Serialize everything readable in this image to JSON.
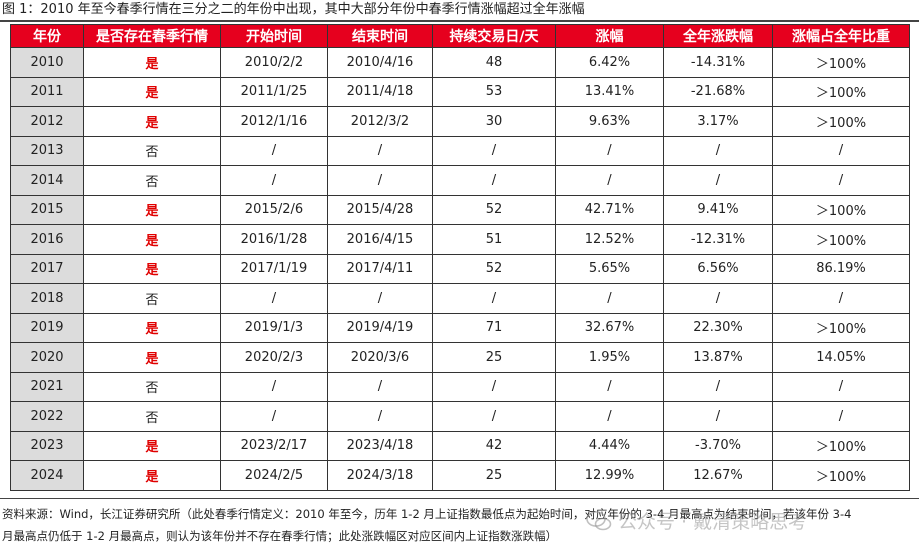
{
  "title": "图 1：2010 年至今春季行情在三分之二的年份中出现，其中大部分年份中春季行情涨幅超过全年涨幅",
  "columns": [
    "年份",
    "是否存在春季行情",
    "开始时间",
    "结束时间",
    "持续交易日/天",
    "涨幅",
    "全年涨跌幅",
    "涨幅占全年比重"
  ],
  "rows": [
    {
      "year": "2010",
      "exists": "是",
      "start": "2010/2/2",
      "end": "2010/4/16",
      "days": "48",
      "gain": "6.42%",
      "annual": "-14.31%",
      "ratio": "＞100%"
    },
    {
      "year": "2011",
      "exists": "是",
      "start": "2011/1/25",
      "end": "2011/4/18",
      "days": "53",
      "gain": "13.41%",
      "annual": "-21.68%",
      "ratio": "＞100%"
    },
    {
      "year": "2012",
      "exists": "是",
      "start": "2012/1/16",
      "end": "2012/3/2",
      "days": "30",
      "gain": "9.63%",
      "annual": "3.17%",
      "ratio": "＞100%"
    },
    {
      "year": "2013",
      "exists": "否",
      "start": "/",
      "end": "/",
      "days": "/",
      "gain": "/",
      "annual": "/",
      "ratio": "/"
    },
    {
      "year": "2014",
      "exists": "否",
      "start": "/",
      "end": "/",
      "days": "/",
      "gain": "/",
      "annual": "/",
      "ratio": "/"
    },
    {
      "year": "2015",
      "exists": "是",
      "start": "2015/2/6",
      "end": "2015/4/28",
      "days": "52",
      "gain": "42.71%",
      "annual": "9.41%",
      "ratio": "＞100%"
    },
    {
      "year": "2016",
      "exists": "是",
      "start": "2016/1/28",
      "end": "2016/4/15",
      "days": "51",
      "gain": "12.52%",
      "annual": "-12.31%",
      "ratio": "＞100%"
    },
    {
      "year": "2017",
      "exists": "是",
      "start": "2017/1/19",
      "end": "2017/4/11",
      "days": "52",
      "gain": "5.65%",
      "annual": "6.56%",
      "ratio": "86.19%"
    },
    {
      "year": "2018",
      "exists": "否",
      "start": "/",
      "end": "/",
      "days": "/",
      "gain": "/",
      "annual": "/",
      "ratio": "/"
    },
    {
      "year": "2019",
      "exists": "是",
      "start": "2019/1/3",
      "end": "2019/4/19",
      "days": "71",
      "gain": "32.67%",
      "annual": "22.30%",
      "ratio": "＞100%"
    },
    {
      "year": "2020",
      "exists": "是",
      "start": "2020/2/3",
      "end": "2020/3/6",
      "days": "25",
      "gain": "1.95%",
      "annual": "13.87%",
      "ratio": "14.05%"
    },
    {
      "year": "2021",
      "exists": "否",
      "start": "/",
      "end": "/",
      "days": "/",
      "gain": "/",
      "annual": "/",
      "ratio": "/"
    },
    {
      "year": "2022",
      "exists": "否",
      "start": "/",
      "end": "/",
      "days": "/",
      "gain": "/",
      "annual": "/",
      "ratio": "/"
    },
    {
      "year": "2023",
      "exists": "是",
      "start": "2023/2/17",
      "end": "2023/4/18",
      "days": "42",
      "gain": "4.44%",
      "annual": "-3.70%",
      "ratio": "＞100%"
    },
    {
      "year": "2024",
      "exists": "是",
      "start": "2024/2/5",
      "end": "2024/3/18",
      "days": "25",
      "gain": "12.99%",
      "annual": "12.67%",
      "ratio": "＞100%"
    }
  ],
  "note_line1": "资料来源：Wind，长江证券研究所（此处春季行情定义：2010 年至今，历年 1-2 月上证指数最低点为起始时间，对应年份的 3-4 月最高点为结束时间，若该年份 3-4",
  "note_line2": "月最高点仍低于 1-2 月最高点，则认为该年份并不存在春季行情；此处涨跌幅区对应区间内上证指数涨跌幅）",
  "watermark": "公众号 · 戴清策略思考",
  "colors": {
    "header_bg": "#e6001e",
    "yes_text": "#e00000",
    "year_bg": "#dcdcdc"
  }
}
